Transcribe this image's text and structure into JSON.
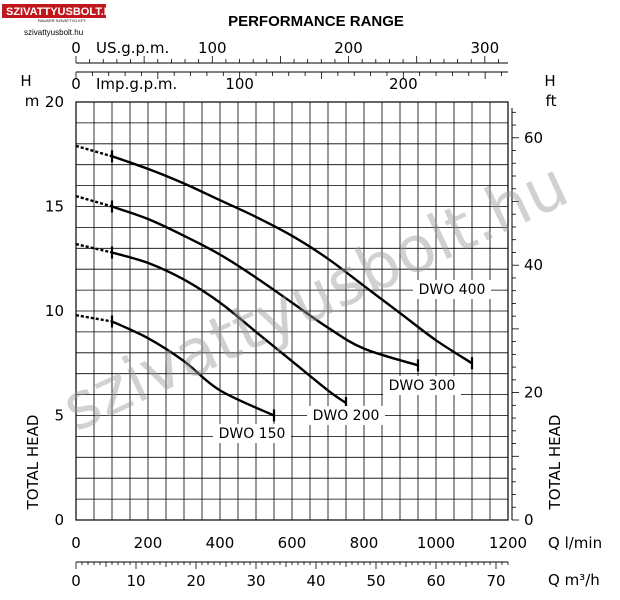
{
  "logo": {
    "main": "SZIVATTYUSBOLT.HU",
    "sub": "RAUKER SZIVATTYÚ KFT.",
    "url": "szivattyusbolt.hu",
    "bg_color": "#c0171d"
  },
  "watermark": "szivattyusbolt.hu",
  "chart_data": {
    "type": "line",
    "title": "PERFORMANCE RANGE",
    "xlabel": "Q l/min",
    "x2label": "Q m³/h",
    "x3label": "Imp.g.p.m.",
    "x4label": "US.g.p.m.",
    "ylabel": "TOTAL HEAD",
    "ylabel_unit": "H m",
    "y2label": "TOTAL HEAD",
    "y2label_unit": "H ft",
    "xlim": [
      0,
      1200
    ],
    "ylim": [
      0,
      20
    ],
    "grid": true,
    "x_ticks": [
      0,
      200,
      400,
      600,
      800,
      1000,
      1200
    ],
    "x_ticks_m3h": [
      0,
      10,
      20,
      30,
      40,
      50,
      60,
      70
    ],
    "x_ticks_imp": [
      0,
      100,
      200
    ],
    "x_ticks_us": [
      0,
      100,
      200,
      300
    ],
    "y_ticks": [
      0,
      5,
      10,
      15,
      20
    ],
    "y_ticks_ft": [
      0,
      20,
      40,
      60
    ],
    "series": [
      {
        "name": "DWO 150",
        "label": "DWO 150",
        "points": [
          [
            0,
            9.8
          ],
          [
            100,
            9.5
          ],
          [
            200,
            8.7
          ],
          [
            300,
            7.6
          ],
          [
            400,
            6.2
          ],
          [
            550,
            5.0
          ]
        ],
        "dashed_until": 100
      },
      {
        "name": "DWO 200",
        "label": "DWO 200",
        "points": [
          [
            0,
            13.2
          ],
          [
            100,
            12.8
          ],
          [
            200,
            12.3
          ],
          [
            300,
            11.5
          ],
          [
            400,
            10.4
          ],
          [
            500,
            9.0
          ],
          [
            600,
            7.6
          ],
          [
            700,
            6.2
          ],
          [
            750,
            5.6
          ]
        ],
        "dashed_until": 100
      },
      {
        "name": "DWO 300",
        "label": "DWO 300",
        "points": [
          [
            0,
            15.5
          ],
          [
            100,
            15.0
          ],
          [
            200,
            14.4
          ],
          [
            300,
            13.6
          ],
          [
            400,
            12.7
          ],
          [
            500,
            11.6
          ],
          [
            600,
            10.4
          ],
          [
            700,
            9.2
          ],
          [
            800,
            8.2
          ],
          [
            950,
            7.4
          ]
        ],
        "dashed_until": 100
      },
      {
        "name": "DWO 400",
        "label": "DWO 400",
        "points": [
          [
            0,
            17.9
          ],
          [
            100,
            17.4
          ],
          [
            200,
            16.8
          ],
          [
            300,
            16.1
          ],
          [
            400,
            15.3
          ],
          [
            500,
            14.5
          ],
          [
            600,
            13.6
          ],
          [
            700,
            12.5
          ],
          [
            800,
            11.2
          ],
          [
            900,
            9.9
          ],
          [
            1000,
            8.6
          ],
          [
            1100,
            7.5
          ]
        ],
        "dashed_until": 100
      }
    ]
  }
}
